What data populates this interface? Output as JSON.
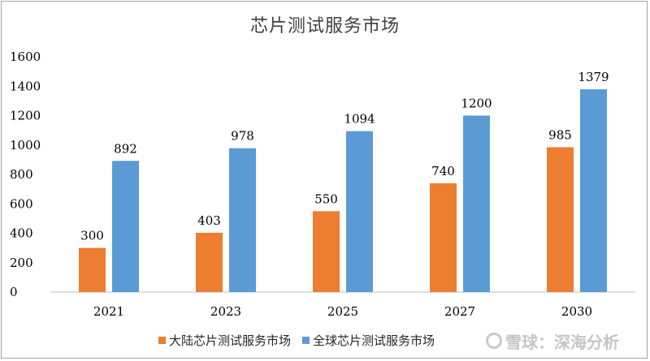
{
  "chart_data": {
    "type": "bar",
    "title": "芯片测试服务市场",
    "categories": [
      "2021",
      "2023",
      "2025",
      "2027",
      "2030"
    ],
    "series": [
      {
        "name": "大陆芯片测试服务市场",
        "color": "#ed7d31",
        "values": [
          300,
          403,
          550,
          740,
          985
        ]
      },
      {
        "name": "全球芯片测试服务市场",
        "color": "#5b9bd5",
        "values": [
          892,
          978,
          1094,
          1200,
          1379
        ]
      }
    ],
    "yticks": [
      "0",
      "200",
      "400",
      "600",
      "800",
      "1000",
      "1200",
      "1400",
      "1600"
    ],
    "ylim": [
      0,
      1600
    ],
    "grid": false,
    "legend_position": "bottom",
    "xlabel": "",
    "ylabel": ""
  },
  "watermark": "雪球：深海分析"
}
